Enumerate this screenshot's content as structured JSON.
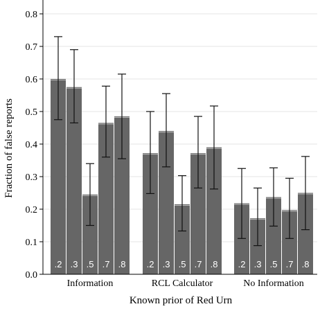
{
  "chart_data": {
    "type": "bar",
    "title": "",
    "xlabel": "Known prior of Red Urn",
    "ylabel": "Fraction of false reports",
    "ylim": [
      0,
      0.85
    ],
    "yticks": [
      "0.0",
      "0.1",
      "0.2",
      "0.3",
      "0.4",
      "0.5",
      "0.6",
      "0.7",
      "0.8"
    ],
    "grid": true,
    "bar_color": "#666666",
    "groups": [
      {
        "name": "Information",
        "categories": [
          ".2",
          ".3",
          ".5",
          ".7",
          ".8"
        ],
        "values": [
          0.6,
          0.575,
          0.245,
          0.465,
          0.485
        ],
        "ci_low": [
          0.475,
          0.465,
          0.15,
          0.36,
          0.355
        ],
        "ci_high": [
          0.73,
          0.69,
          0.34,
          0.578,
          0.615
        ]
      },
      {
        "name": "RCL Calculator",
        "categories": [
          ".2",
          ".3",
          ".5",
          ".7",
          ".8"
        ],
        "values": [
          0.372,
          0.44,
          0.215,
          0.372,
          0.39
        ],
        "ci_low": [
          0.248,
          0.33,
          0.133,
          0.265,
          0.262
        ],
        "ci_high": [
          0.5,
          0.555,
          0.303,
          0.485,
          0.517
        ]
      },
      {
        "name": "No Information",
        "categories": [
          ".2",
          ".3",
          ".5",
          ".7",
          ".8"
        ],
        "values": [
          0.218,
          0.172,
          0.237,
          0.197,
          0.25
        ],
        "ci_low": [
          0.11,
          0.088,
          0.148,
          0.11,
          0.137
        ],
        "ci_high": [
          0.325,
          0.265,
          0.327,
          0.295,
          0.362
        ]
      }
    ]
  }
}
